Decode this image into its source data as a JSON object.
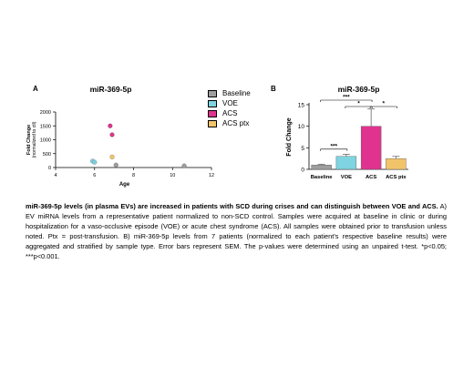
{
  "figure": {
    "panel_a_letter": "A",
    "panel_b_letter": "B"
  },
  "legend": [
    {
      "label": "Baseline",
      "color": "#9e9e9e"
    },
    {
      "label": "VOE",
      "color": "#7ed4e0"
    },
    {
      "label": "ACS",
      "color": "#e0338f"
    },
    {
      "label": "ACS ptx",
      "color": "#f2c46a"
    }
  ],
  "caption": {
    "bold": "miR-369-5p levels (in plasma EVs) are increased in patients with SCD during crises and can distinguish between VOE and ACS.",
    "body": " A) EV miRNA levels from a representative patient normalized to non-SCD control. Samples were acquired at baseline in clinic or during hospitalization for a vaso-occlusive episode (VOE) or acute chest syndrome (ACS). All samples were obtained prior to transfusion unless noted. Ptx = post-transfusion. B) miR-369-5p levels from 7 patients (normalized to each patient’s respective baseline results) were aggregated and stratified by sample type. Error bars represent SEM. The p-values were determined using an unpaired t-test. *p<0.05; ***p<0.001."
  },
  "chart_data": [
    {
      "type": "scatter",
      "title": "miR-369-5p",
      "xlabel": "Age",
      "ylabel": "Fold Change (normalized to ctl)",
      "xlim": [
        4,
        12
      ],
      "ylim": [
        0,
        2000
      ],
      "xticks": [
        4,
        6,
        8,
        10,
        12
      ],
      "yticks": [
        0,
        500,
        1000,
        1500,
        2000
      ],
      "series": [
        {
          "name": "Baseline",
          "color": "#9e9e9e",
          "points": [
            [
              7.1,
              90
            ],
            [
              10.6,
              60
            ]
          ]
        },
        {
          "name": "VOE",
          "color": "#7ed4e0",
          "points": [
            [
              5.9,
              230
            ],
            [
              6.0,
              190
            ]
          ]
        },
        {
          "name": "ACS",
          "color": "#e0338f",
          "points": [
            [
              6.8,
              1500
            ],
            [
              6.9,
              1180
            ]
          ]
        },
        {
          "name": "ACS ptx",
          "color": "#f2c46a",
          "points": [
            [
              6.9,
              380
            ]
          ]
        }
      ]
    },
    {
      "type": "bar",
      "title": "miR-369-5p",
      "ylabel": "Fold Change",
      "categories": [
        "Baseline",
        "VOE",
        "ACS",
        "ACS ptx"
      ],
      "values": [
        1.0,
        3.0,
        10.0,
        2.5
      ],
      "errors": [
        0.2,
        0.5,
        4.0,
        0.5
      ],
      "colors": [
        "#9e9e9e",
        "#7ed4e0",
        "#e0338f",
        "#f2c46a"
      ],
      "ylim": [
        0,
        15
      ],
      "yticks": [
        0,
        5,
        10,
        15
      ],
      "significance": [
        {
          "from": "Baseline",
          "to": "VOE",
          "label": "***"
        },
        {
          "from": "Baseline",
          "to": "ACS",
          "label": "***"
        },
        {
          "from": "VOE",
          "to": "ACS",
          "label": "*"
        },
        {
          "from": "ACS",
          "to": "ACS ptx",
          "label": "*"
        }
      ]
    }
  ]
}
